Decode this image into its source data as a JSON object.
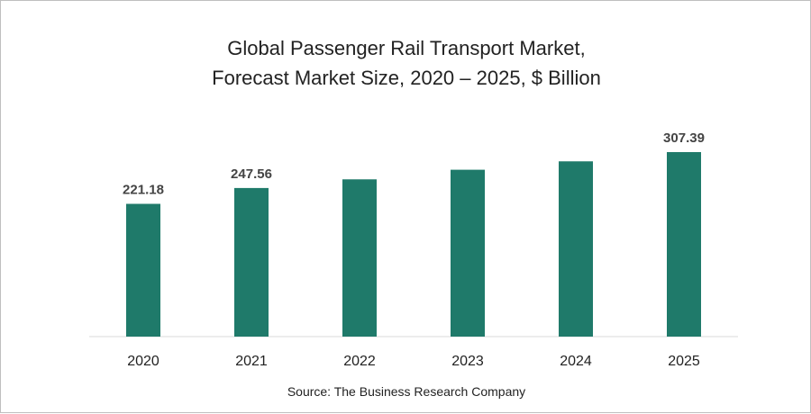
{
  "chart_data": {
    "type": "bar",
    "title_lines": [
      "Global Passenger Rail Transport Market,",
      "Forecast Market Size, 2020 – 2025, $ Billion"
    ],
    "categories": [
      "2020",
      "2021",
      "2022",
      "2023",
      "2024",
      "2025"
    ],
    "values": [
      221.18,
      247.56,
      262,
      278,
      292,
      307.39
    ],
    "data_labels": [
      "221.18",
      "247.56",
      "",
      "",
      "",
      "307.39"
    ],
    "xlabel": "",
    "ylabel": "",
    "ylim": [
      0,
      320
    ],
    "grid": false,
    "legend": "none",
    "bar_color": "#1f7a6a"
  },
  "source": "Source: The Business Research Company"
}
